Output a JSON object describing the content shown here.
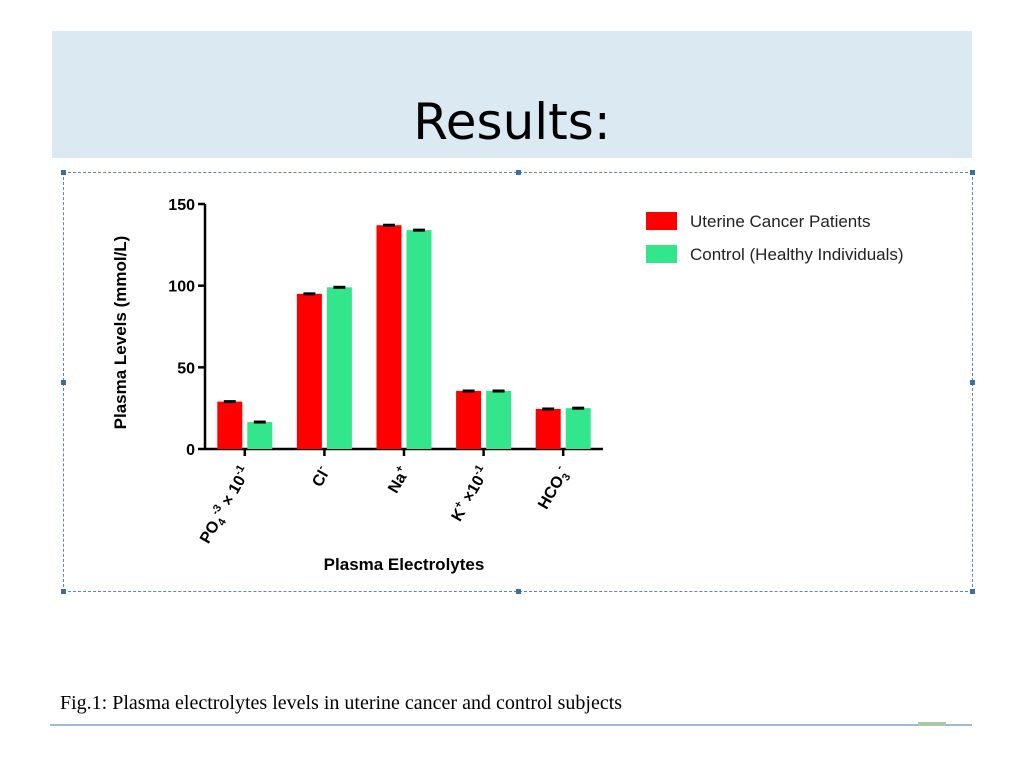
{
  "slide": {
    "title": "Results:",
    "caption": "Fig.1: Plasma electrolytes levels in uterine cancer and control subjects"
  },
  "chart_data": {
    "type": "bar",
    "categories": [
      "PO4-3 × 10-1",
      "Cl-",
      "Na+",
      "K+ ×10-1",
      "HCO3-"
    ],
    "category_labels": [
      {
        "base": "PO",
        "sub": "4",
        "sup": "-3",
        "tail": " × 10",
        "tail_sup": "-1"
      },
      {
        "base": "Cl",
        "sub": "",
        "sup": "-",
        "tail": "",
        "tail_sup": ""
      },
      {
        "base": "Na",
        "sub": "",
        "sup": "+",
        "tail": "",
        "tail_sup": ""
      },
      {
        "base": "K",
        "sub": "",
        "sup": "+",
        "tail": " ×10",
        "tail_sup": "-1"
      },
      {
        "base": "HCO",
        "sub": "3",
        "sup": "-",
        "tail": "",
        "tail_sup": ""
      }
    ],
    "series": [
      {
        "name": "Uterine Cancer Patients",
        "color": "#ff0000",
        "values": [
          29,
          95,
          137,
          35.5,
          24.5
        ]
      },
      {
        "name": "Control (Healthy Individuals)",
        "color": "#33e68c",
        "values": [
          16.5,
          99,
          134,
          35.5,
          25
        ]
      }
    ],
    "xlabel": "Plasma Electrolytes",
    "ylabel": "Plasma Levels (mmol/L)",
    "ylim": [
      0,
      150
    ],
    "yticks": [
      0,
      50,
      100,
      150
    ],
    "ytick_labels": [
      "0",
      "50",
      "100",
      "150"
    ],
    "grid": false,
    "legend_position": "top-right",
    "error_bars": true
  }
}
